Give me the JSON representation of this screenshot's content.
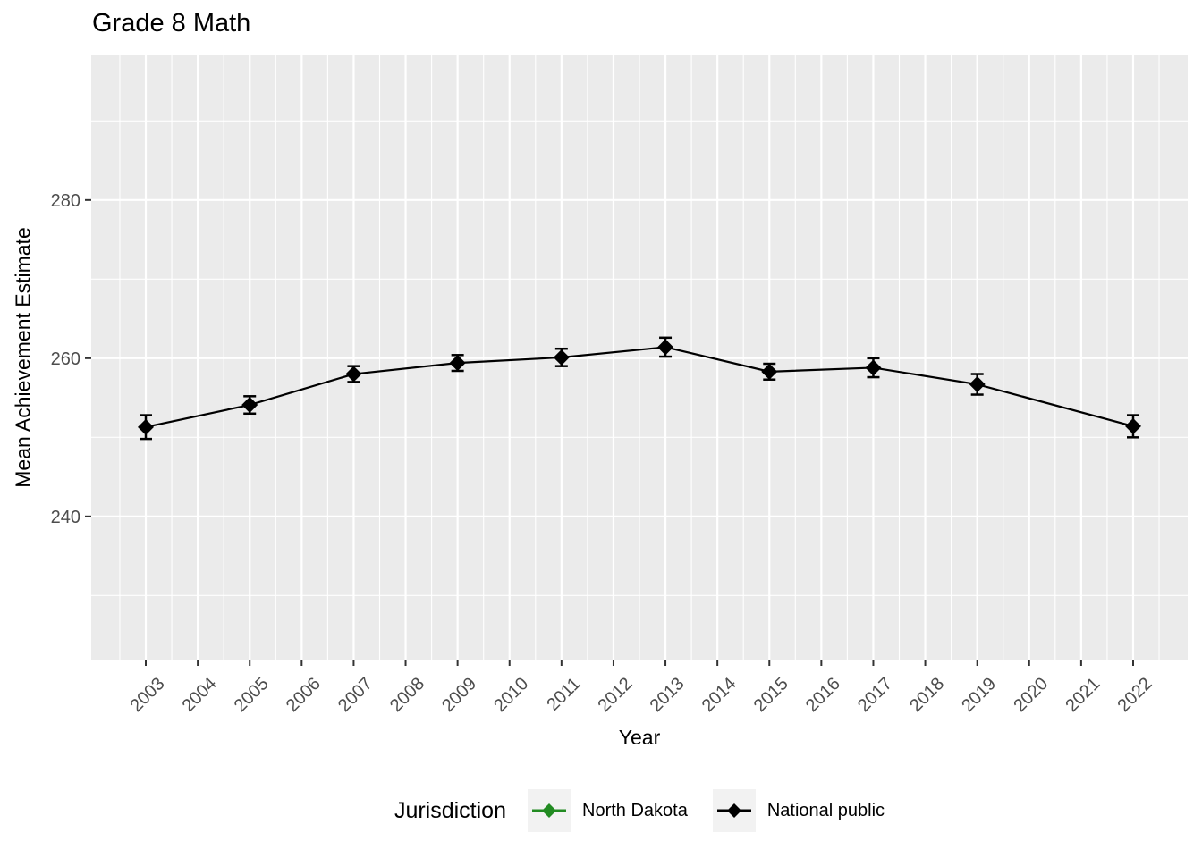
{
  "chart_data": {
    "type": "line",
    "title": "Grade 8 Math",
    "xlabel": "Year",
    "ylabel": "Mean Achievement Estimate",
    "x_ticks": [
      2003,
      2004,
      2005,
      2006,
      2007,
      2008,
      2009,
      2010,
      2011,
      2012,
      2013,
      2014,
      2015,
      2016,
      2017,
      2018,
      2019,
      2020,
      2021,
      2022
    ],
    "y_ticks": [
      240,
      260,
      280
    ],
    "y_minor_gridlines": [
      230,
      250,
      270,
      290
    ],
    "xlim": [
      2001.95,
      2023.05
    ],
    "ylim": [
      221.9,
      298.4
    ],
    "grid": true,
    "point_shape": "diamond",
    "error_bars": true,
    "legend": {
      "title": "Jurisdiction",
      "position": "bottom",
      "entries": [
        {
          "label": "North Dakota",
          "color": "#228B22"
        },
        {
          "label": "National public",
          "color": "#000000"
        }
      ]
    },
    "series": [
      {
        "name": "North Dakota",
        "color": "#228B22",
        "x": [],
        "values": [],
        "errors": []
      },
      {
        "name": "National public",
        "color": "#000000",
        "x": [
          2003,
          2005,
          2007,
          2009,
          2011,
          2013,
          2015,
          2017,
          2019,
          2022
        ],
        "values": [
          251.3,
          254.1,
          258.0,
          259.4,
          260.1,
          261.4,
          258.3,
          258.8,
          256.7,
          251.4
        ],
        "errors": [
          1.5,
          1.1,
          1.0,
          1.0,
          1.1,
          1.2,
          1.0,
          1.2,
          1.3,
          1.4
        ]
      }
    ]
  },
  "style": {
    "panel_bg": "#EBEBEB",
    "grid_color": "#FFFFFF",
    "tick_mark_color": "#333333",
    "axis_text_color": "#4D4D4D",
    "title_color": "#000000",
    "legend_key_bg": "#F2F2F2",
    "background": "#FFFFFF"
  }
}
